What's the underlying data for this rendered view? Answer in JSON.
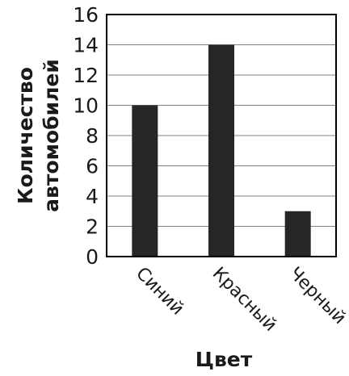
{
  "chart_data": {
    "type": "bar",
    "categories": [
      "Синий",
      "Красный",
      "Черный"
    ],
    "values": [
      10,
      14,
      3
    ],
    "title": "",
    "xlabel": "Цвет",
    "ylabel_lines": [
      "Количество",
      "автомобилей"
    ],
    "ylim": [
      0,
      16
    ],
    "yticks": [
      0,
      2,
      4,
      6,
      8,
      10,
      12,
      14,
      16
    ],
    "grid": true,
    "bar_color": "#262626",
    "grid_color": "#808080",
    "axis_color": "#000000"
  }
}
